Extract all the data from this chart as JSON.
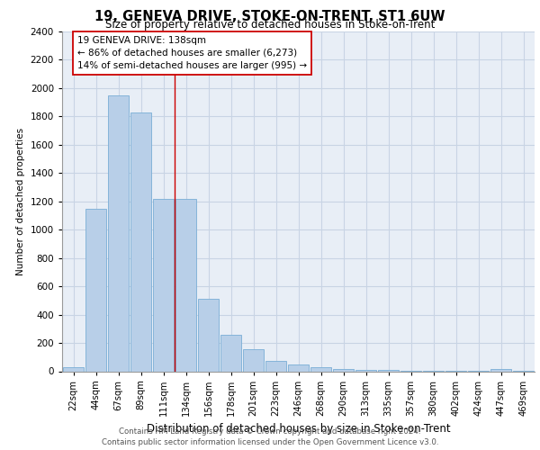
{
  "title": "19, GENEVA DRIVE, STOKE-ON-TRENT, ST1 6UW",
  "subtitle": "Size of property relative to detached houses in Stoke-on-Trent",
  "xlabel": "Distribution of detached houses by size in Stoke-on-Trent",
  "ylabel": "Number of detached properties",
  "bar_labels": [
    "22sqm",
    "44sqm",
    "67sqm",
    "89sqm",
    "111sqm",
    "134sqm",
    "156sqm",
    "178sqm",
    "201sqm",
    "223sqm",
    "246sqm",
    "268sqm",
    "290sqm",
    "313sqm",
    "335sqm",
    "357sqm",
    "380sqm",
    "402sqm",
    "424sqm",
    "447sqm",
    "469sqm"
  ],
  "bar_values": [
    30,
    1150,
    1950,
    1830,
    1220,
    1220,
    510,
    260,
    155,
    70,
    50,
    30,
    18,
    12,
    8,
    5,
    4,
    3,
    3,
    18,
    5
  ],
  "bar_color": "#b8cfe8",
  "bar_edge_color": "#7aaed6",
  "property_line_x": 4.5,
  "annotation_text": "19 GENEVA DRIVE: 138sqm\n← 86% of detached houses are smaller (6,273)\n14% of semi-detached houses are larger (995) →",
  "annotation_box_color": "#ffffff",
  "annotation_box_edge_color": "#cc0000",
  "ylim": [
    0,
    2400
  ],
  "yticks": [
    0,
    200,
    400,
    600,
    800,
    1000,
    1200,
    1400,
    1600,
    1800,
    2000,
    2200,
    2400
  ],
  "footer_line1": "Contains HM Land Registry data © Crown copyright and database right 2024.",
  "footer_line2": "Contains public sector information licensed under the Open Government Licence v3.0.",
  "grid_color": "#c8d4e4",
  "background_color": "#e8eef6"
}
